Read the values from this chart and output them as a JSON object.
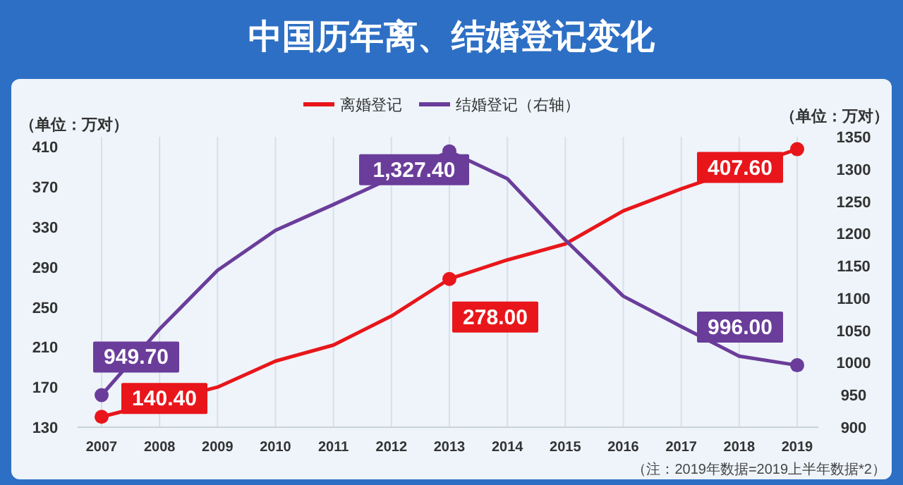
{
  "chart_data": {
    "type": "line",
    "title": "中国历年离、结婚登记变化",
    "ylabel": "（单位：万对）",
    "y2label": "（单位：万对）",
    "categories": [
      "2007",
      "2008",
      "2009",
      "2010",
      "2011",
      "2012",
      "2013",
      "2014",
      "2015",
      "2016",
      "2017",
      "2018",
      "2019"
    ],
    "series": [
      {
        "name": "离婚登记",
        "color": "#e8161b",
        "values": [
          140.4,
          null,
          170,
          196,
          212,
          241,
          278,
          297,
          313,
          346,
          368,
          null,
          407.6
        ],
        "value_labels": [
          "140.40",
          null,
          null,
          null,
          null,
          null,
          "278.00",
          null,
          null,
          null,
          null,
          null,
          "407.60"
        ]
      },
      {
        "name": "结婚登记（右轴）",
        "color": "#6a3d9a",
        "axis": "y2",
        "values": [
          949.7,
          1052,
          1143,
          1205,
          1245,
          null,
          1327.4,
          1285,
          1190,
          1103,
          1056,
          1010,
          996
        ],
        "value_labels": [
          "949.70",
          null,
          null,
          null,
          null,
          null,
          "1,327.40",
          null,
          null,
          null,
          null,
          null,
          "996.00"
        ]
      }
    ],
    "ylim": [
      130,
      420
    ],
    "yticks": [
      130,
      170,
      210,
      250,
      290,
      330,
      370,
      410
    ],
    "y2lim": [
      900,
      1350
    ],
    "y2ticks": [
      900,
      950,
      1000,
      1050,
      1100,
      1150,
      1200,
      1250,
      1300,
      1350
    ],
    "grid": "x",
    "legend": "top",
    "line_style": "solid",
    "annotations": [
      "（注：2019年数据=2019上半年数据*2）"
    ]
  }
}
